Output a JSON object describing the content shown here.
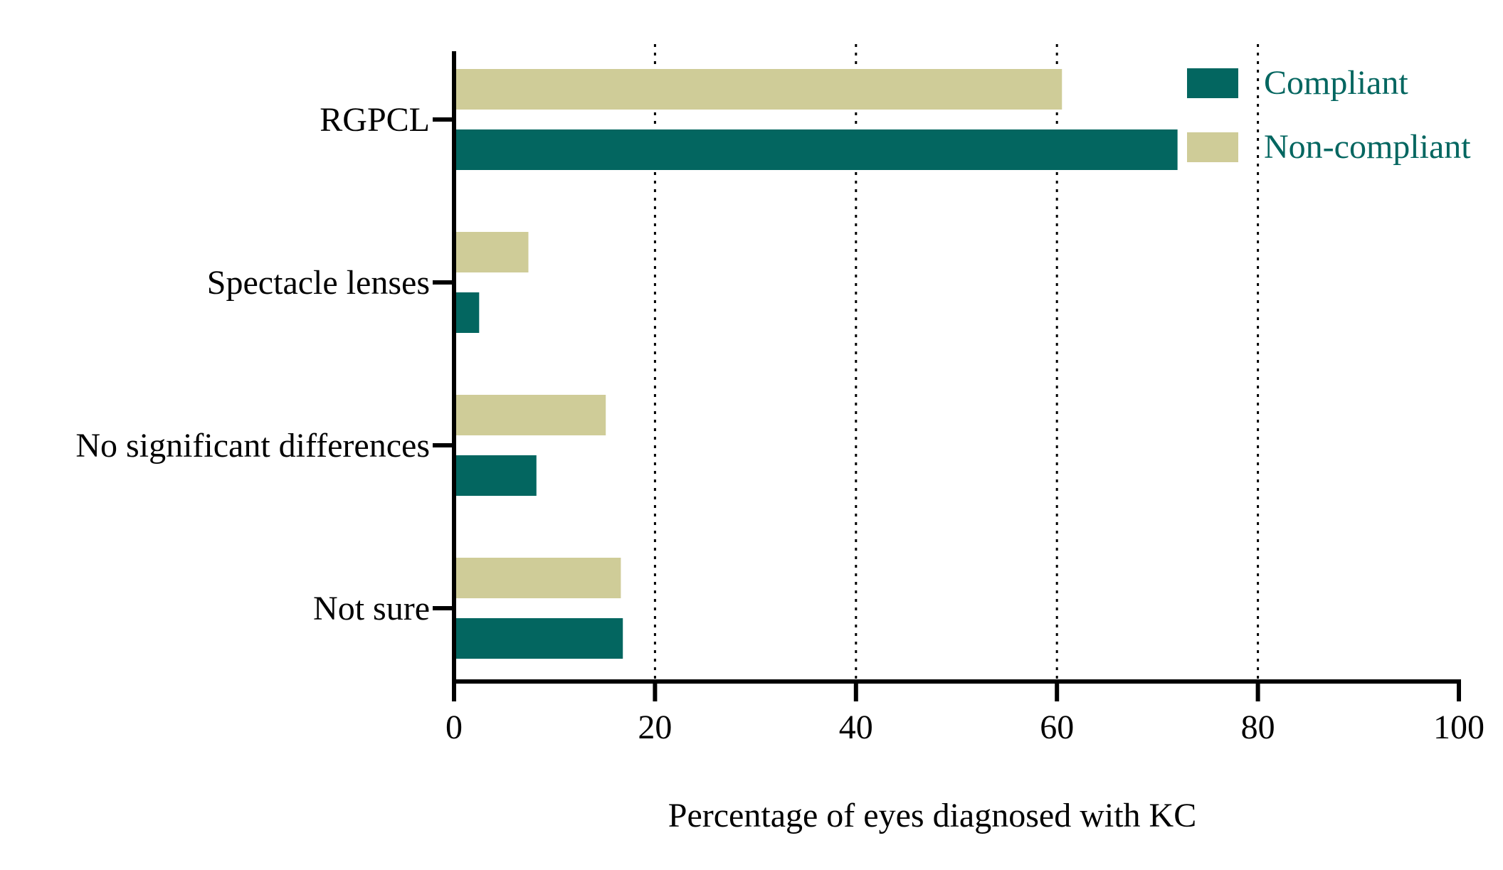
{
  "chart_data": {
    "type": "bar",
    "orientation": "horizontal",
    "categories": [
      "RGPCL",
      "Spectacle lenses",
      "No significant differences",
      "Not sure"
    ],
    "series": [
      {
        "name": "Compliant",
        "color": "#036660",
        "values": [
          72,
          2.5,
          8.2,
          16.8
        ]
      },
      {
        "name": "Non-compliant",
        "color": "#cfcc98",
        "values": [
          60.5,
          7.4,
          15.1,
          16.6
        ]
      }
    ],
    "xlabel": "Percentage of eyes diagnosed with KC",
    "ylabel": "",
    "xlim": [
      0,
      100
    ],
    "xticks": [
      0,
      20,
      40,
      60,
      80,
      100
    ],
    "xtick_labels": [
      "0",
      "20",
      "40",
      "60",
      "80",
      "100"
    ],
    "gridlines": [
      20,
      40,
      60,
      80
    ],
    "grid_style": "dotted",
    "legend_position": "top-right",
    "legend_text_color": "#036660",
    "axis_color": "#000000"
  }
}
